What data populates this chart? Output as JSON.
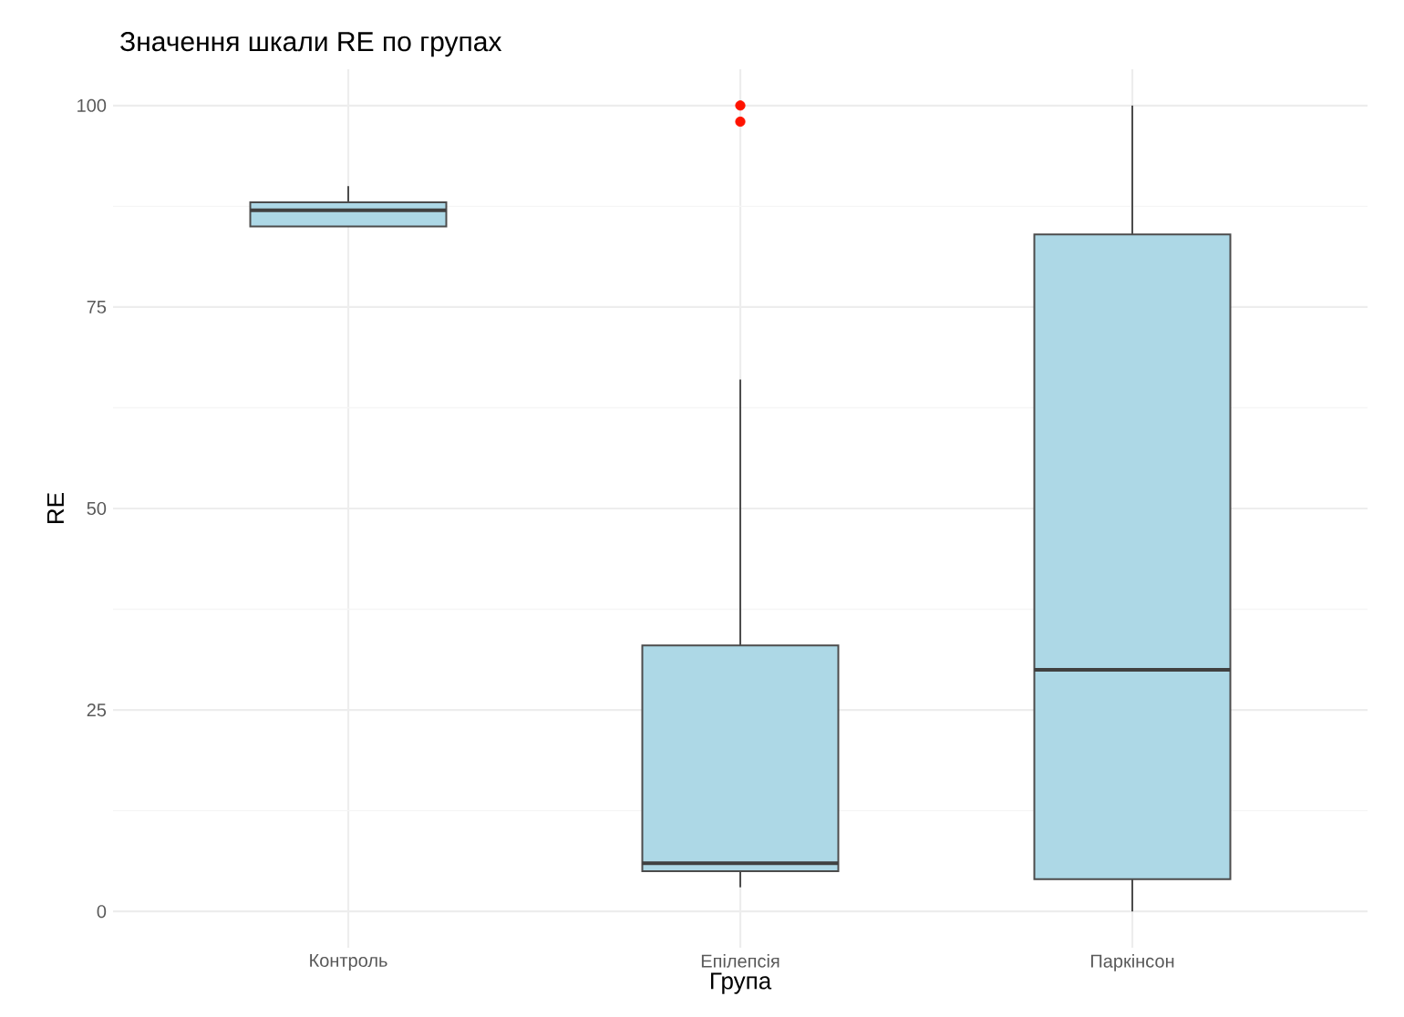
{
  "chart_data": {
    "type": "box",
    "title": "Значення шкали RE по групах",
    "xlabel": "Група",
    "ylabel": "RE",
    "categories": [
      "Контроль",
      "Епілепсія",
      "Паркінсон"
    ],
    "color": "#add8e6",
    "boxes": [
      {
        "low": 85,
        "q1": 85,
        "median": 87,
        "q3": 88,
        "high": 90
      },
      {
        "low": 3,
        "q1": 5,
        "median": 6,
        "q3": 33,
        "high": 66,
        "outliers": [
          98,
          100
        ]
      },
      {
        "low": 0,
        "q1": 4,
        "median": 30,
        "q3": 84,
        "high": 100
      }
    ],
    "ylim": [
      -4.5,
      104.5
    ],
    "yticks": [
      0,
      25,
      50,
      75,
      100
    ],
    "grid": true
  }
}
